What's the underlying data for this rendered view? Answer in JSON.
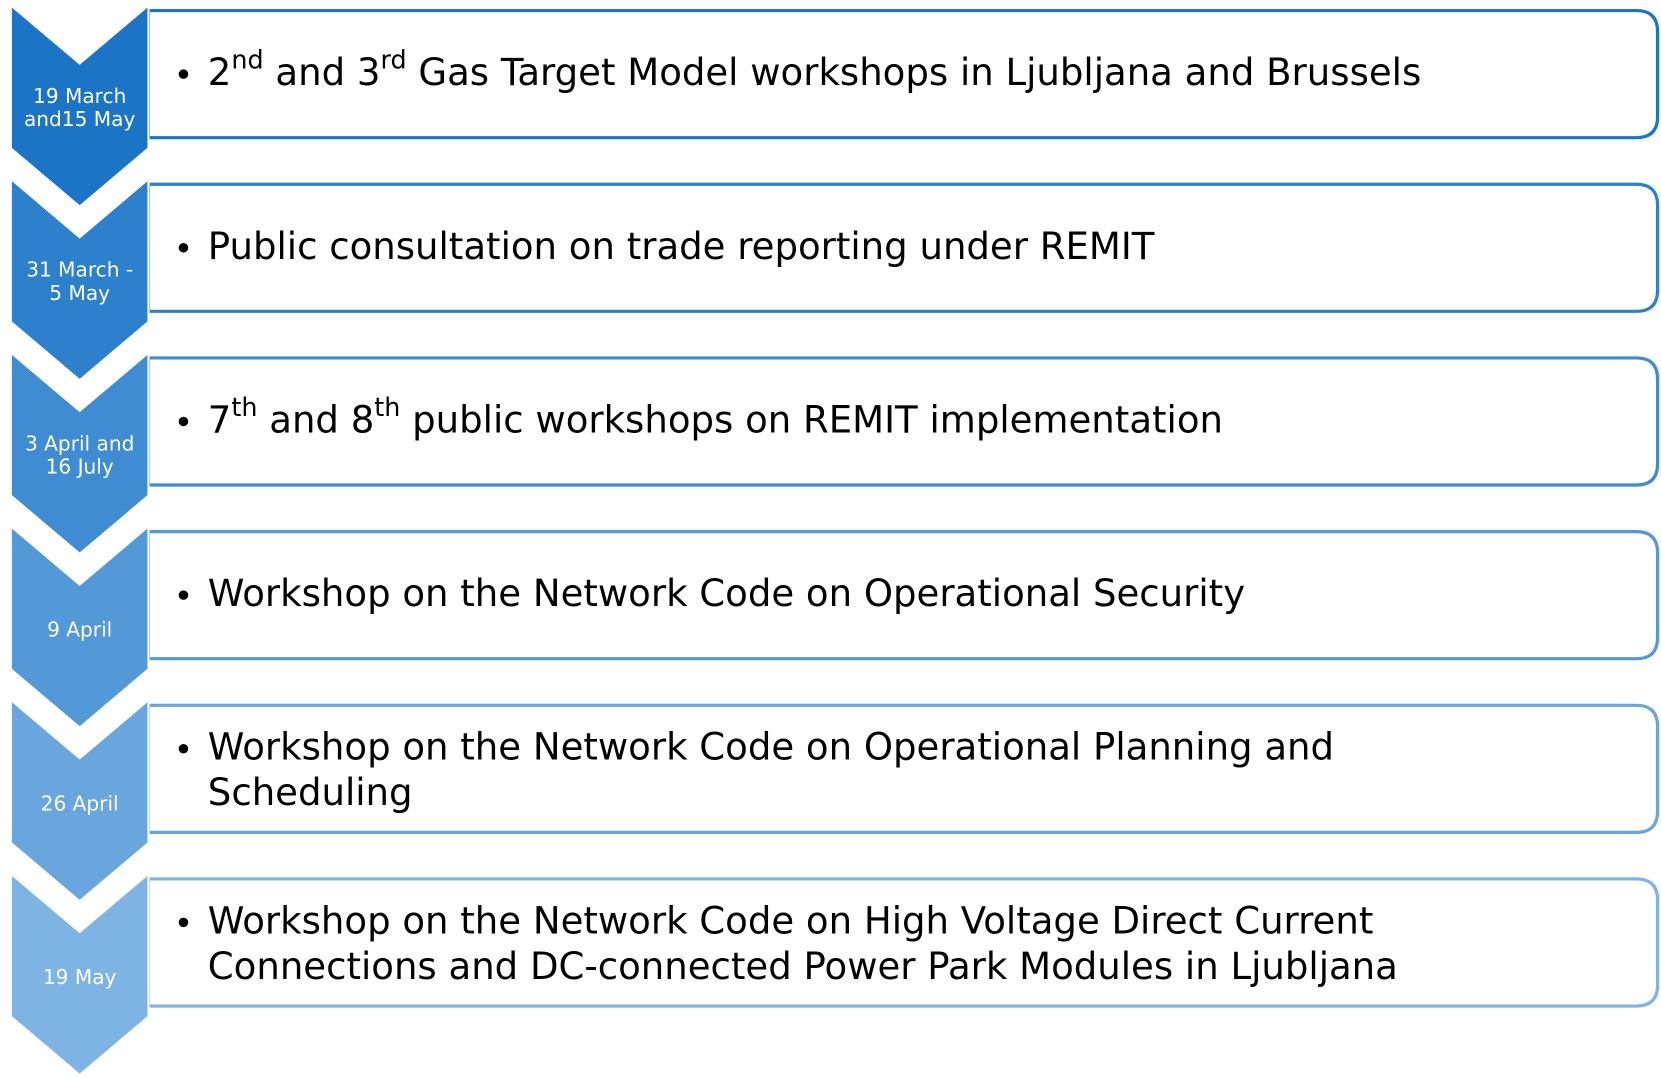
{
  "items": [
    {
      "date": [
        "19 March",
        "and15 May"
      ],
      "color": "#1b74c6",
      "lines": [
        [
          {
            "text": "2"
          },
          {
            "sup": "nd"
          },
          {
            "text": " and 3"
          },
          {
            "sup": "rd"
          },
          {
            "text": " Gas Target Model workshops in Ljubljana and Brussels"
          }
        ]
      ]
    },
    {
      "date": [
        "31 March -",
        "5 May"
      ],
      "color": "#2c80cc",
      "lines": [
        [
          {
            "text": "Public consultation on trade reporting under REMIT"
          }
        ]
      ]
    },
    {
      "date": [
        "3 April  and",
        "16 July"
      ],
      "color": "#3f8cd2",
      "lines": [
        [
          {
            "text": "7"
          },
          {
            "sup": "th"
          },
          {
            "text": " and 8"
          },
          {
            "sup": "th"
          },
          {
            "text": " public workshops on REMIT implementation"
          }
        ]
      ]
    },
    {
      "date": [
        "9 April"
      ],
      "color": "#5398d7",
      "lines": [
        [
          {
            "text": "Workshop on the Network Code on Operational Security"
          }
        ]
      ]
    },
    {
      "date": [
        "26 April"
      ],
      "color": "#68a6dd",
      "lines": [
        [
          {
            "text": "Workshop on the Network Code on Operational Planning and"
          }
        ],
        [
          {
            "text": "Scheduling"
          }
        ]
      ]
    },
    {
      "date": [
        "19 May"
      ],
      "color": "#7db4e3",
      "lines": [
        [
          {
            "text": "Workshop on the Network Code on High Voltage Direct Current"
          }
        ],
        [
          {
            "text": "Connections and DC-connected Power Park Modules in Ljubljana"
          }
        ]
      ]
    }
  ]
}
